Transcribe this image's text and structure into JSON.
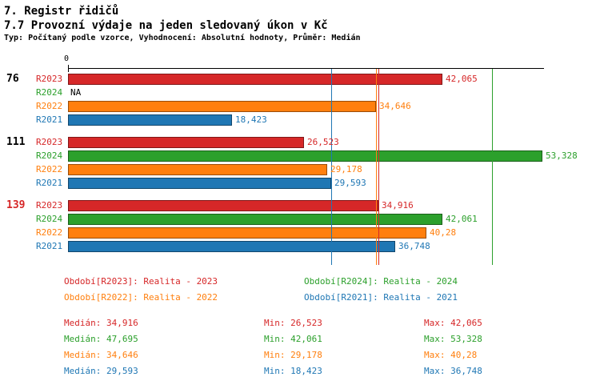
{
  "header": {
    "title": "7. Registr řidičů",
    "subtitle": "7.7 Provozní výdaje na jeden sledovaný úkon v Kč",
    "meta": "Typ: Počítaný podle vzorce, Vyhodnocení: Absolutní hodnoty, Průměr: Medián"
  },
  "colors": {
    "R2023": "#d62728",
    "R2024": "#2ca02c",
    "R2022": "#ff7f0e",
    "R2021": "#1f77b4",
    "axis": "#000000",
    "na_text": "#000000"
  },
  "chart_data": {
    "type": "bar",
    "orientation": "horizontal",
    "title": "7.7 Provozní výdaje na jeden sledovaný úkon v Kč",
    "axis_zero_label": "0",
    "xlim": [
      0,
      53328
    ],
    "grid": false,
    "legend_position": "bottom",
    "series_order": [
      "R2023",
      "R2024",
      "R2022",
      "R2021"
    ],
    "groups": [
      {
        "label": "76",
        "label_color": "#000000",
        "bars": [
          {
            "series": "R2023",
            "value": 42065,
            "display": "42,065"
          },
          {
            "series": "R2024",
            "value": null,
            "display": "NA"
          },
          {
            "series": "R2022",
            "value": 34646,
            "display": "34,646"
          },
          {
            "series": "R2021",
            "value": 18423,
            "display": "18,423"
          }
        ]
      },
      {
        "label": "111",
        "label_color": "#000000",
        "bars": [
          {
            "series": "R2023",
            "value": 26523,
            "display": "26,523"
          },
          {
            "series": "R2024",
            "value": 53328,
            "display": "53,328"
          },
          {
            "series": "R2022",
            "value": 29178,
            "display": "29,178"
          },
          {
            "series": "R2021",
            "value": 29593,
            "display": "29,593"
          }
        ]
      },
      {
        "label": "139",
        "label_color": "#d62728",
        "bars": [
          {
            "series": "R2023",
            "value": 34916,
            "display": "34,916"
          },
          {
            "series": "R2024",
            "value": 42061,
            "display": "42,061"
          },
          {
            "series": "R2022",
            "value": 40280,
            "display": "40,28"
          },
          {
            "series": "R2021",
            "value": 36748,
            "display": "36,748"
          }
        ]
      }
    ],
    "median_lines": [
      {
        "series": "R2023",
        "value": 34916
      },
      {
        "series": "R2024",
        "value": 47695
      },
      {
        "series": "R2022",
        "value": 34646
      },
      {
        "series": "R2021",
        "value": 29593
      }
    ]
  },
  "legend": [
    {
      "series": "R2023",
      "label": "Období[R2023]: Realita - 2023"
    },
    {
      "series": "R2024",
      "label": "Období[R2024]: Realita - 2024"
    },
    {
      "series": "R2022",
      "label": "Období[R2022]: Realita - 2022"
    },
    {
      "series": "R2021",
      "label": "Období[R2021]: Realita - 2021"
    }
  ],
  "stats": [
    {
      "series": "R2023",
      "median": "Medián: 34,916",
      "min": "Min: 26,523",
      "max": "Max: 42,065"
    },
    {
      "series": "R2024",
      "median": "Medián: 47,695",
      "min": "Min: 42,061",
      "max": "Max: 53,328"
    },
    {
      "series": "R2022",
      "median": "Medián: 34,646",
      "min": "Min: 29,178",
      "max": "Max: 40,28"
    },
    {
      "series": "R2021",
      "median": "Medián: 29,593",
      "min": "Min: 18,423",
      "max": "Max: 36,748"
    }
  ]
}
